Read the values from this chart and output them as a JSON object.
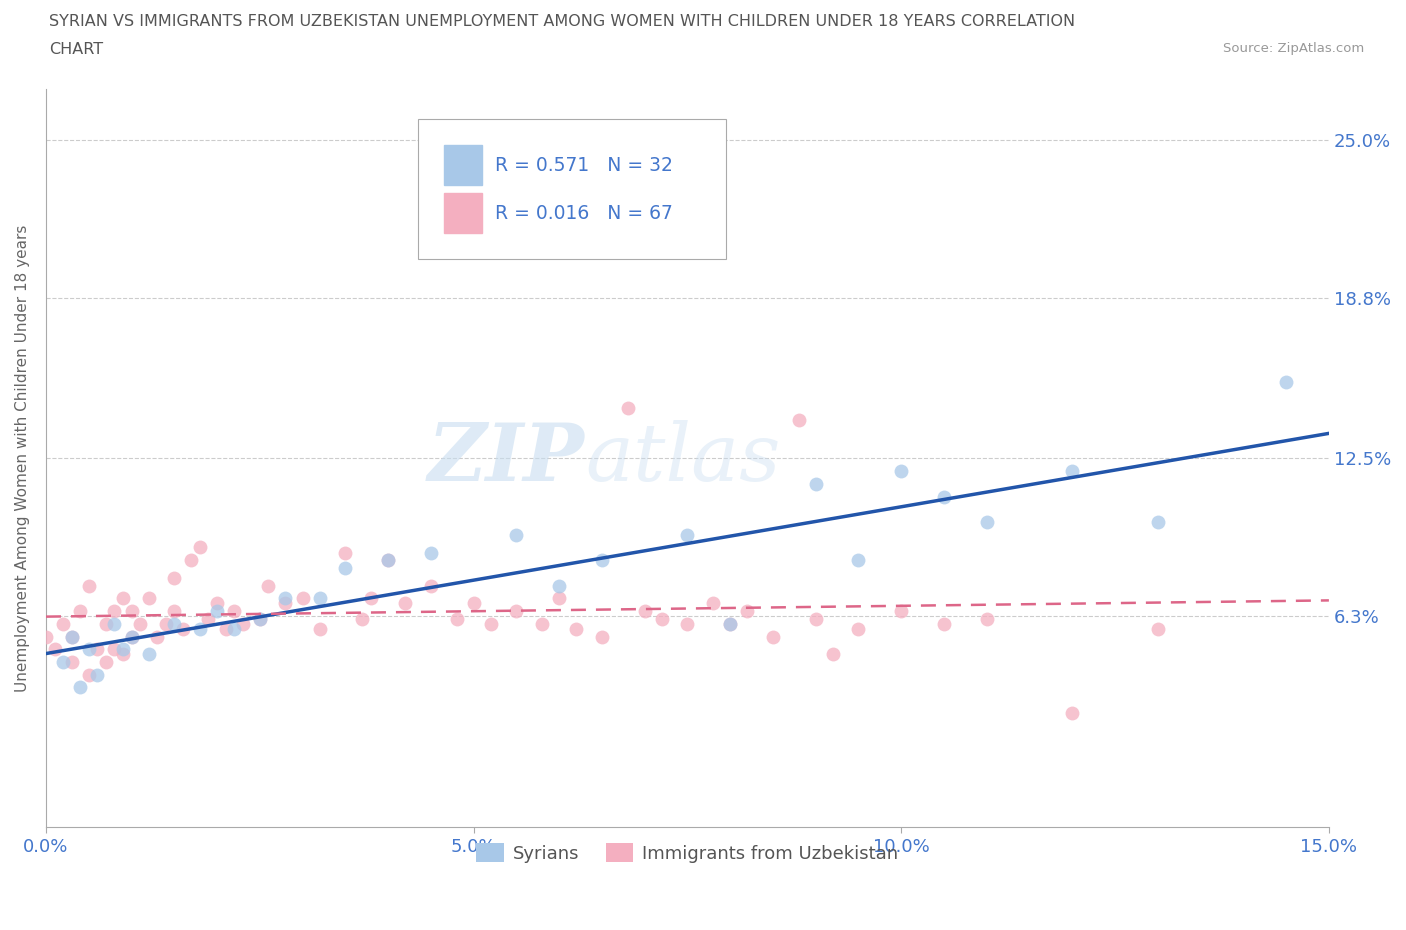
{
  "title_line1": "SYRIAN VS IMMIGRANTS FROM UZBEKISTAN UNEMPLOYMENT AMONG WOMEN WITH CHILDREN UNDER 18 YEARS CORRELATION",
  "title_line2": "CHART",
  "source_text": "Source: ZipAtlas.com",
  "ylabel": "Unemployment Among Women with Children Under 18 years",
  "xmin": 0.0,
  "xmax": 0.15,
  "ymin": -0.02,
  "ymax": 0.27,
  "yticks": [
    0.063,
    0.125,
    0.188,
    0.25
  ],
  "ytick_labels": [
    "6.3%",
    "12.5%",
    "18.8%",
    "25.0%"
  ],
  "xticks": [
    0.0,
    0.05,
    0.1,
    0.15
  ],
  "xtick_labels": [
    "0.0%",
    "5.0%",
    "10.0%",
    "15.0%"
  ],
  "color_syrian": "#a8c8e8",
  "color_uzbek": "#f4afc0",
  "color_syrian_line": "#2255aa",
  "color_uzbek_line": "#dd6688",
  "R_syrian": 0.571,
  "N_syrian": 32,
  "R_uzbek": 0.016,
  "N_uzbek": 67,
  "legend_label_syrian": "Syrians",
  "legend_label_uzbek": "Immigrants from Uzbekistan",
  "watermark_zip": "ZIP",
  "watermark_atlas": "atlas",
  "background_color": "#ffffff",
  "syrian_x": [
    0.002,
    0.003,
    0.004,
    0.005,
    0.006,
    0.008,
    0.009,
    0.01,
    0.012,
    0.015,
    0.018,
    0.02,
    0.022,
    0.025,
    0.028,
    0.032,
    0.035,
    0.04,
    0.045,
    0.055,
    0.06,
    0.065,
    0.075,
    0.08,
    0.09,
    0.095,
    0.1,
    0.105,
    0.11,
    0.12,
    0.13,
    0.145
  ],
  "syrian_y": [
    0.045,
    0.055,
    0.035,
    0.05,
    0.04,
    0.06,
    0.05,
    0.055,
    0.048,
    0.06,
    0.058,
    0.065,
    0.058,
    0.062,
    0.07,
    0.07,
    0.082,
    0.085,
    0.088,
    0.095,
    0.075,
    0.085,
    0.095,
    0.06,
    0.115,
    0.085,
    0.12,
    0.11,
    0.1,
    0.12,
    0.1,
    0.155
  ],
  "uzbek_x": [
    0.0,
    0.001,
    0.002,
    0.003,
    0.003,
    0.004,
    0.005,
    0.005,
    0.006,
    0.007,
    0.007,
    0.008,
    0.008,
    0.009,
    0.009,
    0.01,
    0.01,
    0.011,
    0.012,
    0.013,
    0.014,
    0.015,
    0.015,
    0.016,
    0.017,
    0.018,
    0.019,
    0.02,
    0.021,
    0.022,
    0.023,
    0.025,
    0.026,
    0.028,
    0.03,
    0.032,
    0.035,
    0.037,
    0.038,
    0.04,
    0.042,
    0.045,
    0.048,
    0.05,
    0.052,
    0.055,
    0.058,
    0.06,
    0.062,
    0.065,
    0.068,
    0.07,
    0.072,
    0.075,
    0.078,
    0.08,
    0.082,
    0.085,
    0.088,
    0.09,
    0.092,
    0.095,
    0.1,
    0.105,
    0.11,
    0.12,
    0.13
  ],
  "uzbek_y": [
    0.055,
    0.05,
    0.06,
    0.045,
    0.055,
    0.065,
    0.04,
    0.075,
    0.05,
    0.045,
    0.06,
    0.05,
    0.065,
    0.048,
    0.07,
    0.055,
    0.065,
    0.06,
    0.07,
    0.055,
    0.06,
    0.065,
    0.078,
    0.058,
    0.085,
    0.09,
    0.062,
    0.068,
    0.058,
    0.065,
    0.06,
    0.062,
    0.075,
    0.068,
    0.07,
    0.058,
    0.088,
    0.062,
    0.07,
    0.085,
    0.068,
    0.075,
    0.062,
    0.068,
    0.06,
    0.065,
    0.06,
    0.07,
    0.058,
    0.055,
    0.145,
    0.065,
    0.062,
    0.06,
    0.068,
    0.06,
    0.065,
    0.055,
    0.14,
    0.062,
    0.048,
    0.058,
    0.065,
    0.06,
    0.062,
    0.025,
    0.058
  ],
  "dot_size": 100,
  "dot_alpha": 0.75
}
